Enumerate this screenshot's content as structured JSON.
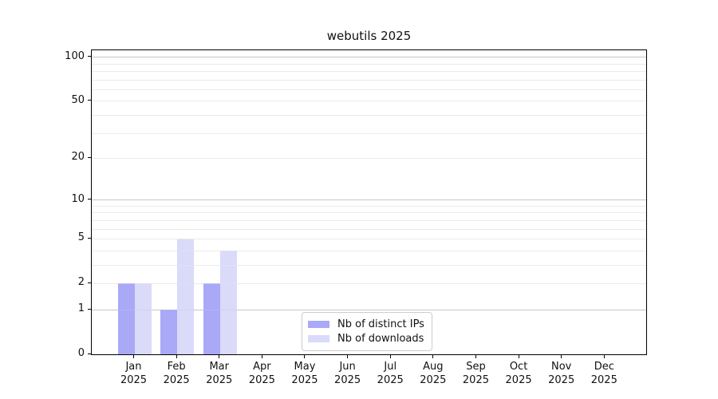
{
  "chart_data": {
    "type": "bar",
    "title": "webutils 2025",
    "categories": [
      "Jan",
      "Feb",
      "Mar",
      "Apr",
      "May",
      "Jun",
      "Jul",
      "Aug",
      "Sep",
      "Oct",
      "Nov",
      "Dec"
    ],
    "x_sublabel": "2025",
    "xlabel": "",
    "ylabel": "",
    "scale": "log1p",
    "y_ticks": [
      0,
      1,
      2,
      5,
      10,
      20,
      50,
      100
    ],
    "ylim": [
      0,
      112
    ],
    "grid": "horizontal major+minor",
    "legend_position": "lower center inside plot",
    "series": [
      {
        "name": "Nb of distinct IPs",
        "color": "#a9a9f8",
        "values": [
          2,
          1,
          2,
          0,
          0,
          0,
          0,
          0,
          0,
          0,
          0,
          0
        ]
      },
      {
        "name": "Nb of downloads",
        "color": "#dadaf9",
        "values": [
          2,
          5,
          4,
          0,
          0,
          0,
          0,
          0,
          0,
          0,
          0,
          0
        ]
      }
    ]
  },
  "colors": {
    "background": "#ffffff",
    "bar_distinct_ips": "#a9a9f8",
    "bar_downloads": "#dadaf9",
    "grid_major": "#c6c6c6",
    "grid_minor": "#ececec",
    "spine": "#000000",
    "text": "#111111",
    "legend_border": "#cccccc"
  }
}
